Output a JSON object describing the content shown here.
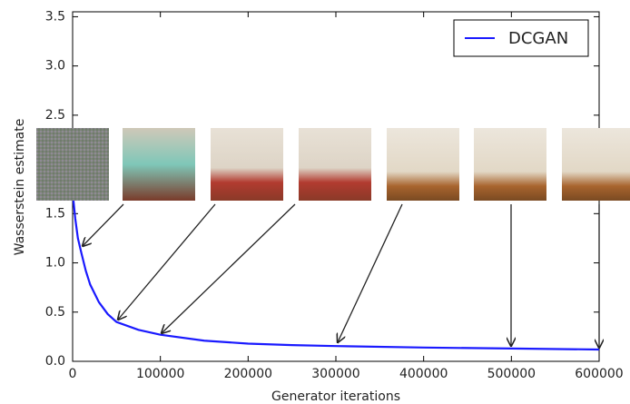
{
  "chart_data": {
    "type": "line",
    "xlabel": "Generator iterations",
    "ylabel": "Wasserstein estimate",
    "x": [
      0,
      3000,
      6000,
      10000,
      15000,
      20000,
      30000,
      40000,
      50000,
      75000,
      100000,
      150000,
      200000,
      250000,
      300000,
      400000,
      500000,
      600000
    ],
    "series": [
      {
        "name": "DCGAN",
        "color": "#1a1aff",
        "values": [
          1.72,
          1.45,
          1.25,
          1.1,
          0.92,
          0.78,
          0.6,
          0.48,
          0.4,
          0.32,
          0.27,
          0.21,
          0.18,
          0.165,
          0.155,
          0.14,
          0.13,
          0.12
        ]
      }
    ],
    "xlim": [
      0,
      600000
    ],
    "ylim": [
      0,
      3.55
    ],
    "xticks": [
      0,
      100000,
      200000,
      300000,
      400000,
      500000,
      600000
    ],
    "yticks": [
      {
        "value": 0,
        "label": "0.0"
      },
      {
        "value": 0.5,
        "label": "0.5"
      },
      {
        "value": 1,
        "label": "1.0"
      },
      1.5,
      2.5,
      {
        "value": 3,
        "label": "3.0"
      },
      3.5
    ],
    "legend": "upper right",
    "grid": false
  }
}
